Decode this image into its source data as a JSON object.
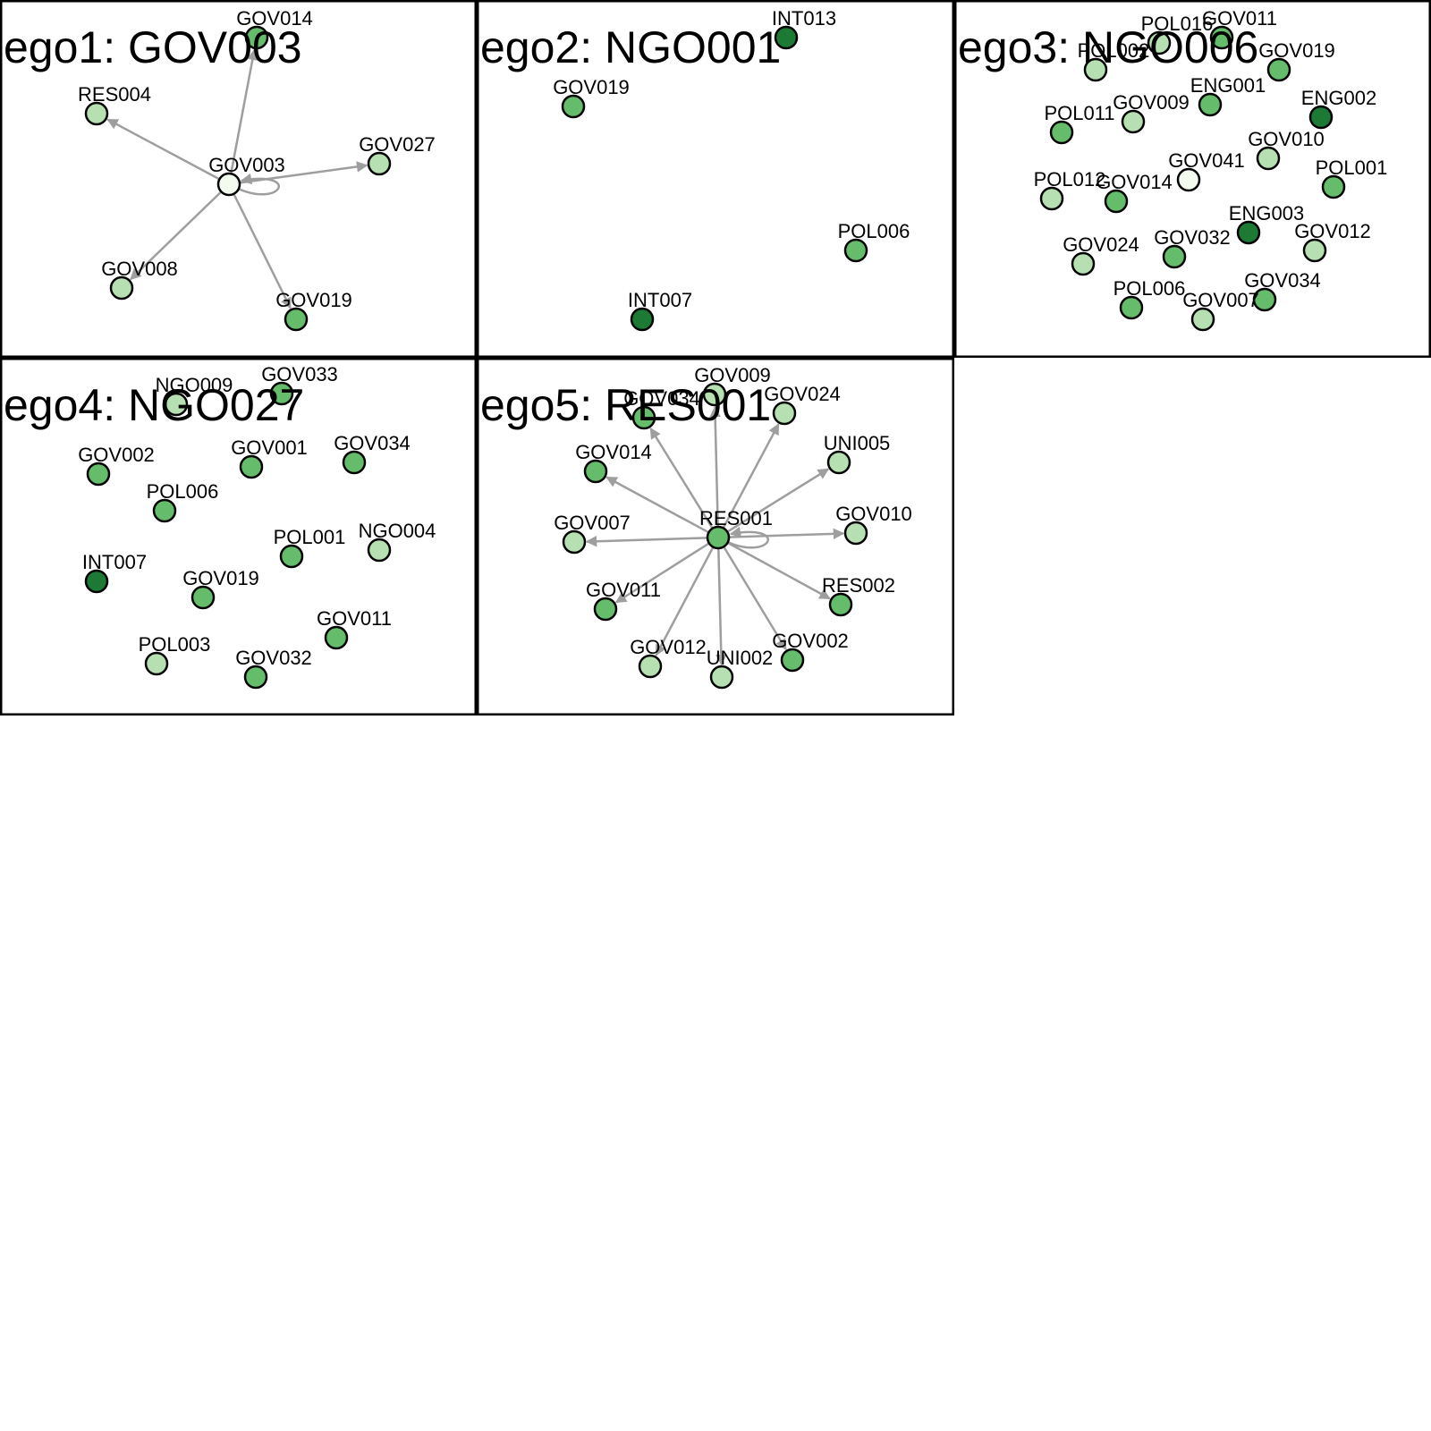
{
  "legend_colors": {
    "lightest": "#f3faef",
    "light": "#b6e0b1",
    "medium": "#65bc6b",
    "dark": "#1d7a34"
  },
  "edge_color": "#9e9e9e",
  "panels": [
    {
      "title": "ego1: GOV003",
      "ego": "GOV003",
      "nodes": [
        {
          "id": "GOV014",
          "shade": "medium"
        },
        {
          "id": "RES004",
          "shade": "light"
        },
        {
          "id": "GOV027",
          "shade": "light"
        },
        {
          "id": "GOV003",
          "shade": "lightest"
        },
        {
          "id": "GOV008",
          "shade": "light"
        },
        {
          "id": "GOV019",
          "shade": "medium"
        }
      ],
      "edges": [
        {
          "from": "GOV003",
          "to": "GOV014"
        },
        {
          "from": "GOV003",
          "to": "RES004"
        },
        {
          "from": "GOV003",
          "to": "GOV027"
        },
        {
          "from": "GOV003",
          "to": "GOV008"
        },
        {
          "from": "GOV003",
          "to": "GOV019"
        },
        {
          "from": "GOV003",
          "to": "GOV003",
          "self_loop": true
        }
      ]
    },
    {
      "title": "ego2: NGO001",
      "ego": "NGO001",
      "nodes": [
        {
          "id": "INT013",
          "shade": "dark"
        },
        {
          "id": "GOV019",
          "shade": "medium"
        },
        {
          "id": "POL006",
          "shade": "medium"
        },
        {
          "id": "INT007",
          "shade": "dark"
        }
      ],
      "edges": []
    },
    {
      "title": "ego3: NGO006",
      "ego": "NGO006",
      "nodes": [
        {
          "id": "POL016",
          "shade": "light"
        },
        {
          "id": "GOV011",
          "shade": "medium"
        },
        {
          "id": "POL002",
          "shade": "light"
        },
        {
          "id": "GOV019",
          "shade": "medium"
        },
        {
          "id": "ENG001",
          "shade": "medium"
        },
        {
          "id": "ENG002",
          "shade": "dark"
        },
        {
          "id": "POL011",
          "shade": "medium"
        },
        {
          "id": "GOV009",
          "shade": "light"
        },
        {
          "id": "GOV010",
          "shade": "light"
        },
        {
          "id": "GOV041",
          "shade": "lightest"
        },
        {
          "id": "POL001",
          "shade": "medium"
        },
        {
          "id": "POL012",
          "shade": "light"
        },
        {
          "id": "GOV014",
          "shade": "medium"
        },
        {
          "id": "ENG003",
          "shade": "dark"
        },
        {
          "id": "GOV024",
          "shade": "light"
        },
        {
          "id": "GOV032",
          "shade": "medium"
        },
        {
          "id": "GOV012",
          "shade": "light"
        },
        {
          "id": "GOV034",
          "shade": "medium"
        },
        {
          "id": "POL006",
          "shade": "medium"
        },
        {
          "id": "GOV007",
          "shade": "light"
        }
      ],
      "edges": []
    },
    {
      "title": "ego4: NGO027",
      "ego": "NGO027",
      "nodes": [
        {
          "id": "NGO009",
          "shade": "light"
        },
        {
          "id": "GOV033",
          "shade": "medium"
        },
        {
          "id": "GOV002",
          "shade": "medium"
        },
        {
          "id": "GOV001",
          "shade": "medium"
        },
        {
          "id": "GOV034",
          "shade": "medium"
        },
        {
          "id": "POL006",
          "shade": "medium"
        },
        {
          "id": "POL001",
          "shade": "medium"
        },
        {
          "id": "NGO004",
          "shade": "light"
        },
        {
          "id": "INT007",
          "shade": "dark"
        },
        {
          "id": "GOV019",
          "shade": "medium"
        },
        {
          "id": "GOV011",
          "shade": "medium"
        },
        {
          "id": "POL003",
          "shade": "light"
        },
        {
          "id": "GOV032",
          "shade": "medium"
        }
      ],
      "edges": []
    },
    {
      "title": "ego5: RES001",
      "ego": "RES001",
      "nodes": [
        {
          "id": "GOV009",
          "shade": "light"
        },
        {
          "id": "GOV034",
          "shade": "medium"
        },
        {
          "id": "GOV024",
          "shade": "light"
        },
        {
          "id": "UNI005",
          "shade": "light"
        },
        {
          "id": "GOV014",
          "shade": "medium"
        },
        {
          "id": "GOV007",
          "shade": "light"
        },
        {
          "id": "RES001",
          "shade": "medium"
        },
        {
          "id": "GOV010",
          "shade": "light"
        },
        {
          "id": "RES002",
          "shade": "medium"
        },
        {
          "id": "GOV011",
          "shade": "medium"
        },
        {
          "id": "GOV012",
          "shade": "light"
        },
        {
          "id": "GOV002",
          "shade": "medium"
        },
        {
          "id": "UNI002",
          "shade": "light"
        }
      ],
      "edges": [
        {
          "from": "RES001",
          "to": "GOV009"
        },
        {
          "from": "RES001",
          "to": "GOV034"
        },
        {
          "from": "RES001",
          "to": "GOV024"
        },
        {
          "from": "RES001",
          "to": "UNI005"
        },
        {
          "from": "RES001",
          "to": "GOV014"
        },
        {
          "from": "RES001",
          "to": "GOV007"
        },
        {
          "from": "RES001",
          "to": "GOV010"
        },
        {
          "from": "RES001",
          "to": "RES002"
        },
        {
          "from": "RES001",
          "to": "GOV011"
        },
        {
          "from": "RES001",
          "to": "GOV012"
        },
        {
          "from": "RES001",
          "to": "GOV002"
        },
        {
          "from": "RES001",
          "to": "UNI002"
        },
        {
          "from": "RES001",
          "to": "RES001",
          "self_loop": true
        }
      ]
    }
  ]
}
